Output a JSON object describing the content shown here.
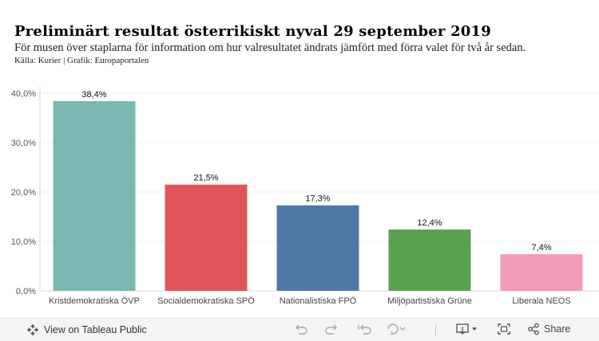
{
  "title": "Preliminärt resultat österrikiskt nyval 29 september 2019",
  "subtitle": "För musen över staplarna för information om hur valresultatet ändrats jämfört med förra valet för två år sedan.",
  "source": "Källa: Kurier | Grafik: Europaportalen",
  "chart_data": {
    "type": "bar",
    "categories": [
      "Kristdemokratiska ÖVP",
      "Socialdemokratiska SPÖ",
      "Nationalistiska FPÖ",
      "Miljöpartistiska Grüne",
      "Liberala NEOS"
    ],
    "values": [
      38.4,
      21.5,
      17.3,
      12.4,
      7.4
    ],
    "value_labels": [
      "38,4%",
      "21,5%",
      "17,3%",
      "12,4%",
      "7,4%"
    ],
    "colors": [
      "#7ab8b2",
      "#e0555a",
      "#4e79a7",
      "#59a14f",
      "#f29bb6"
    ],
    "yticks": [
      "0,0%",
      "10,0%",
      "20,0%",
      "30,0%",
      "40,0%"
    ],
    "ytick_values": [
      0,
      10,
      20,
      30,
      40
    ],
    "ylim": [
      0,
      40
    ],
    "xlabel": "",
    "ylabel": ""
  },
  "footer": {
    "view_label": "View on Tableau Public",
    "share_label": "Share"
  }
}
